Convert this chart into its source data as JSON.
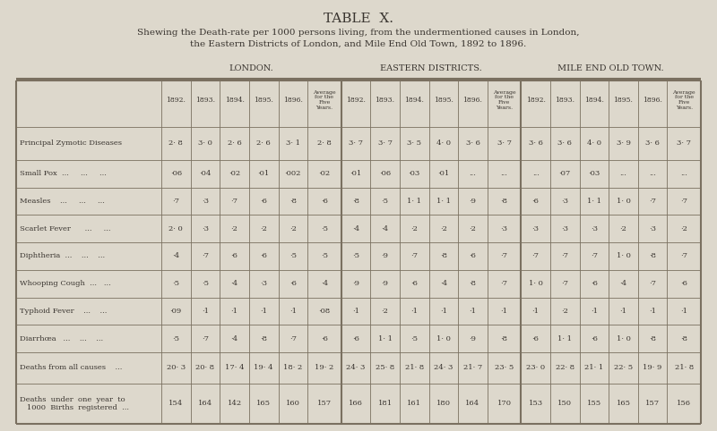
{
  "title": "TABLE  X.",
  "subtitle_line1": "Shewing the Death-rate per 1000 persons living, from the undermentioned causes in London,",
  "subtitle_line2": "the Eastern Districts of London, and Mile End Old Town, 1892 to 1896.",
  "bg_color": "#ddd8cc",
  "text_color": "#3a3530",
  "line_color": "#7a7060",
  "section_headers": [
    "LONDON.",
    "EASTERN DISTRICTS.",
    "MILE END OLD TOWN."
  ],
  "col_years": [
    "1892.",
    "1893.",
    "1894.",
    "1895.",
    "1896."
  ],
  "col_avg": "Average\nfor the\nFive\nYears.",
  "row_labels": [
    "Principal Zymotic Diseases",
    "Small Pox  ...     ...     ...",
    "Measles    ...     ...     ...",
    "Scarlet Fever      ...     ...",
    "Diphtheria  ...    ...    ...",
    "Whooping Cough  ...   ...",
    "Typhoid Fever    ...    ...",
    "Diarrhœa   ...    ...    ...",
    "Deaths from all causes    ...",
    "Deaths  under  one  year  to\n   1000  Births  registered  ..."
  ],
  "london_data": [
    [
      "· 8",
      "· 0",
      "· 6",
      "· 6",
      "· 1",
      "· 8"
    ],
    [
      "·06",
      "·04",
      "·02",
      "·01",
      "·002",
      "·02"
    ],
    [
      "·7",
      "·3",
      "·7",
      "·6",
      "·8",
      "·6"
    ],
    [
      "· 0",
      "·3",
      "·2",
      "·2",
      "·2",
      "·5"
    ],
    [
      "·4",
      "·7",
      "·6",
      "·6",
      "·5",
      "·5"
    ],
    [
      "·5",
      "·5",
      "·4",
      "·3",
      "·6",
      "·4"
    ],
    [
      "·09",
      "·1",
      "·1",
      "·1",
      "·1",
      "·08"
    ],
    [
      "·5",
      "·7",
      "·4",
      "·8",
      "·7",
      "·6"
    ],
    [
      "· 3",
      "· 8",
      "· 4",
      "· 4",
      "· 2",
      "· 2"
    ],
    [
      "154",
      "164",
      "142",
      "165",
      "160",
      "157"
    ]
  ],
  "london_prefix": [
    "2",
    "",
    "",
    "2",
    "",
    "",
    "",
    "",
    "20",
    ""
  ],
  "eastern_data": [
    [
      "· 7",
      "· 7",
      "· 5",
      "· 0",
      "· 6",
      "· 7"
    ],
    [
      "·01",
      "·06",
      "·03",
      "·01",
      "...",
      "..."
    ],
    [
      "·8",
      "·5",
      "· 1",
      "· 1",
      "·9",
      "·8"
    ],
    [
      "·4",
      "·4",
      "·2",
      "·2",
      "·2",
      "·3"
    ],
    [
      "·5",
      "·9",
      "·7",
      "·8",
      "·6",
      "·7"
    ],
    [
      "·9",
      "·9",
      "·6",
      "·4",
      "·8",
      "·7"
    ],
    [
      "·1",
      "·2",
      "·1",
      "·1",
      "·1",
      "·1"
    ],
    [
      "·6",
      "· 1",
      "·5",
      "· 0",
      "·9",
      "·8"
    ],
    [
      "· 3",
      "· 8",
      "· 8",
      "· 3",
      "· 7",
      "· 5"
    ],
    [
      "166",
      "181",
      "161",
      "180",
      "164",
      "170"
    ]
  ],
  "eastern_prefix": [
    "3",
    "",
    "",
    "",
    "",
    "",
    "",
    "1",
    "24",
    ""
  ],
  "mileend_data": [
    [
      "· 6",
      "· 6",
      "· 0",
      "· 9",
      "· 6",
      "· 7"
    ],
    [
      "...",
      "·07",
      "·03",
      "...",
      "...",
      "..."
    ],
    [
      "·6",
      "·3",
      "· 1",
      "· 0",
      "·7",
      "·7"
    ],
    [
      "·3",
      "·3",
      "·3",
      "·2",
      "·3",
      "·2"
    ],
    [
      "·7",
      "·7",
      "·7",
      "· 0",
      "·8",
      "·7"
    ],
    [
      "· 0",
      "·7",
      "·6",
      "·4",
      "·7",
      "·6"
    ],
    [
      "·1",
      "·2",
      "·1",
      "·1",
      "·1",
      "·1"
    ],
    [
      "·6",
      "· 1",
      "·6",
      "· 0",
      "·8",
      "·8"
    ],
    [
      "· 0",
      "· 8",
      "· 1",
      "· 5",
      "· 9",
      "· 8"
    ],
    [
      "153",
      "150",
      "155",
      "165",
      "157",
      "156"
    ]
  ],
  "mileend_prefix": [
    "3",
    "",
    "",
    "",
    "",
    "1",
    "",
    "",
    "23",
    ""
  ]
}
